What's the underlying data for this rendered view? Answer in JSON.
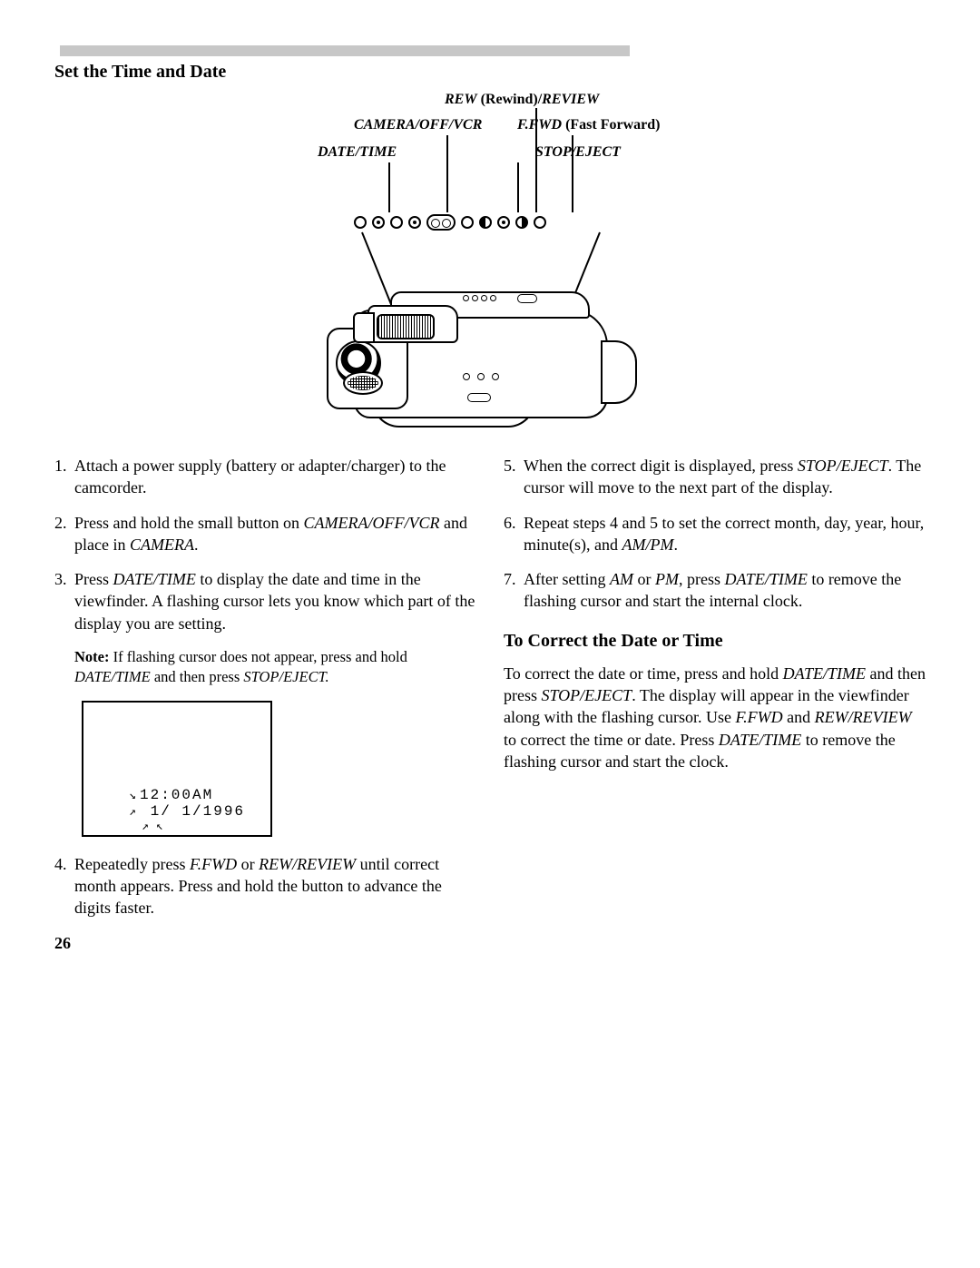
{
  "section_title": "Set the Time and Date",
  "diagram": {
    "labels": {
      "rew": {
        "italic1": "REW",
        "plain": " (Rewind)/",
        "italic2": "REVIEW"
      },
      "camera_off_vcr": "CAMERA/OFF/VCR",
      "ffwd": {
        "italic": "F.FWD",
        "plain": " (Fast Forward)"
      },
      "date_time": "DATE/TIME",
      "stop_eject": "STOP/EJECT"
    }
  },
  "left_steps": [
    {
      "n": "1.",
      "parts": [
        {
          "t": "Attach a power supply (battery or adapter/charger) to the camcorder."
        }
      ]
    },
    {
      "n": "2.",
      "parts": [
        {
          "t": "Press and hold the small button on "
        },
        {
          "t": "CAMERA/OFF/VCR",
          "i": true
        },
        {
          "t": " and place in "
        },
        {
          "t": "CAMERA",
          "i": true
        },
        {
          "t": "."
        }
      ]
    },
    {
      "n": "3.",
      "parts": [
        {
          "t": "Press "
        },
        {
          "t": "DATE/TIME",
          "i": true
        },
        {
          "t": " to display the date and time in the viewfinder. A flashing cursor lets you know which part of the display you are setting."
        }
      ]
    }
  ],
  "note": {
    "bold": "Note:",
    "rest_parts": [
      {
        "t": " If flashing cursor does not appear, press and hold "
      },
      {
        "t": "DATE/TIME",
        "i": true
      },
      {
        "t": " and then press "
      },
      {
        "t": "STOP/EJECT.",
        "i": true
      }
    ]
  },
  "viewfinder": {
    "time": "12:00AM",
    "date": " 1/ 1/1996"
  },
  "left_step4": {
    "n": "4.",
    "parts": [
      {
        "t": "Repeatedly press "
      },
      {
        "t": "F.FWD",
        "i": true
      },
      {
        "t": " or "
      },
      {
        "t": "REW/REVIEW",
        "i": true
      },
      {
        "t": " until correct month appears. Press and hold the button to advance the digits faster."
      }
    ]
  },
  "right_steps": [
    {
      "n": "5.",
      "parts": [
        {
          "t": "When the correct digit is displayed, press "
        },
        {
          "t": "STOP/EJECT",
          "i": true
        },
        {
          "t": ". The cursor will move to the next part of the display."
        }
      ]
    },
    {
      "n": "6.",
      "parts": [
        {
          "t": "Repeat steps 4 and 5 to set the correct month, day, year, hour, minute(s), and "
        },
        {
          "t": "AM/PM",
          "i": true
        },
        {
          "t": "."
        }
      ]
    },
    {
      "n": "7.",
      "parts": [
        {
          "t": "After setting "
        },
        {
          "t": "AM",
          "i": true
        },
        {
          "t": " or "
        },
        {
          "t": "PM",
          "i": true
        },
        {
          "t": ", press "
        },
        {
          "t": "DATE/TIME",
          "i": true
        },
        {
          "t": " to remove the flashing cursor and start the internal clock."
        }
      ]
    }
  ],
  "subheading": "To Correct the Date or Time",
  "correct_para_parts": [
    {
      "t": "To correct the date or time, press and hold "
    },
    {
      "t": "DATE/TIME",
      "i": true
    },
    {
      "t": " and then press "
    },
    {
      "t": "STOP/EJECT",
      "i": true
    },
    {
      "t": ". The display will appear in the viewfinder along with the flashing cursor. Use "
    },
    {
      "t": "F.FWD",
      "i": true
    },
    {
      "t": " and "
    },
    {
      "t": "REW/REVIEW",
      "i": true
    },
    {
      "t": " to correct the time or date. Press "
    },
    {
      "t": "DATE/TIME",
      "i": true
    },
    {
      "t": " to remove the flashing cursor and start the clock."
    }
  ],
  "page_number": "26"
}
